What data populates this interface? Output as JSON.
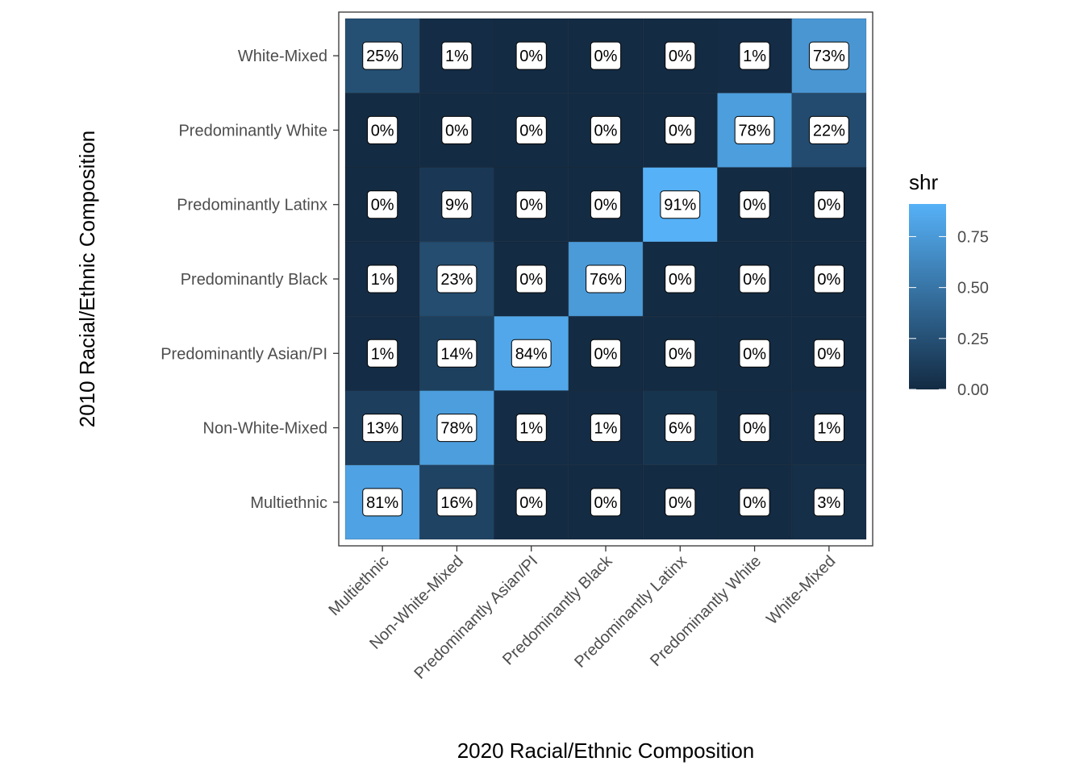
{
  "chart_data": {
    "type": "heatmap",
    "xlabel": "2020 Racial/Ethnic Composition",
    "ylabel": "2010 Racial/Ethnic Composition",
    "x_categories": [
      "Multiethnic",
      "Non-White-Mixed",
      "Predominantly Asian/PI",
      "Predominantly Black",
      "Predominantly Latinx",
      "Predominantly White",
      "White-Mixed"
    ],
    "y_categories": [
      "Multiethnic",
      "Non-White-Mixed",
      "Predominantly Asian/PI",
      "Predominantly Black",
      "Predominantly Latinx",
      "Predominantly White",
      "White-Mixed"
    ],
    "values": [
      [
        0.81,
        0.16,
        0.0,
        0.0,
        0.0,
        0.0,
        0.03
      ],
      [
        0.13,
        0.78,
        0.01,
        0.01,
        0.06,
        0.0,
        0.01
      ],
      [
        0.01,
        0.14,
        0.84,
        0.0,
        0.0,
        0.0,
        0.0
      ],
      [
        0.01,
        0.23,
        0.0,
        0.76,
        0.0,
        0.0,
        0.0
      ],
      [
        0.0,
        0.09,
        0.0,
        0.0,
        0.91,
        0.0,
        0.0
      ],
      [
        0.0,
        0.0,
        0.0,
        0.0,
        0.0,
        0.78,
        0.22
      ],
      [
        0.25,
        0.01,
        0.0,
        0.0,
        0.0,
        0.01,
        0.73
      ]
    ],
    "labels": [
      [
        "81%",
        "16%",
        "0%",
        "0%",
        "0%",
        "0%",
        "3%"
      ],
      [
        "13%",
        "78%",
        "1%",
        "1%",
        "6%",
        "0%",
        "1%"
      ],
      [
        "1%",
        "14%",
        "84%",
        "0%",
        "0%",
        "0%",
        "0%"
      ],
      [
        "1%",
        "23%",
        "0%",
        "76%",
        "0%",
        "0%",
        "0%"
      ],
      [
        "0%",
        "9%",
        "0%",
        "0%",
        "91%",
        "0%",
        "0%"
      ],
      [
        "0%",
        "0%",
        "0%",
        "0%",
        "0%",
        "78%",
        "22%"
      ],
      [
        "25%",
        "1%",
        "0%",
        "0%",
        "0%",
        "1%",
        "73%"
      ]
    ],
    "legend": {
      "title": "shr",
      "breaks": [
        0.0,
        0.25,
        0.5,
        0.75
      ],
      "labels": [
        "0.00",
        "0.25",
        "0.50",
        "0.75"
      ],
      "range": [
        0.0,
        0.91
      ],
      "low_color": "#132B43",
      "high_color": "#56B1F7",
      "placement": "right"
    }
  }
}
